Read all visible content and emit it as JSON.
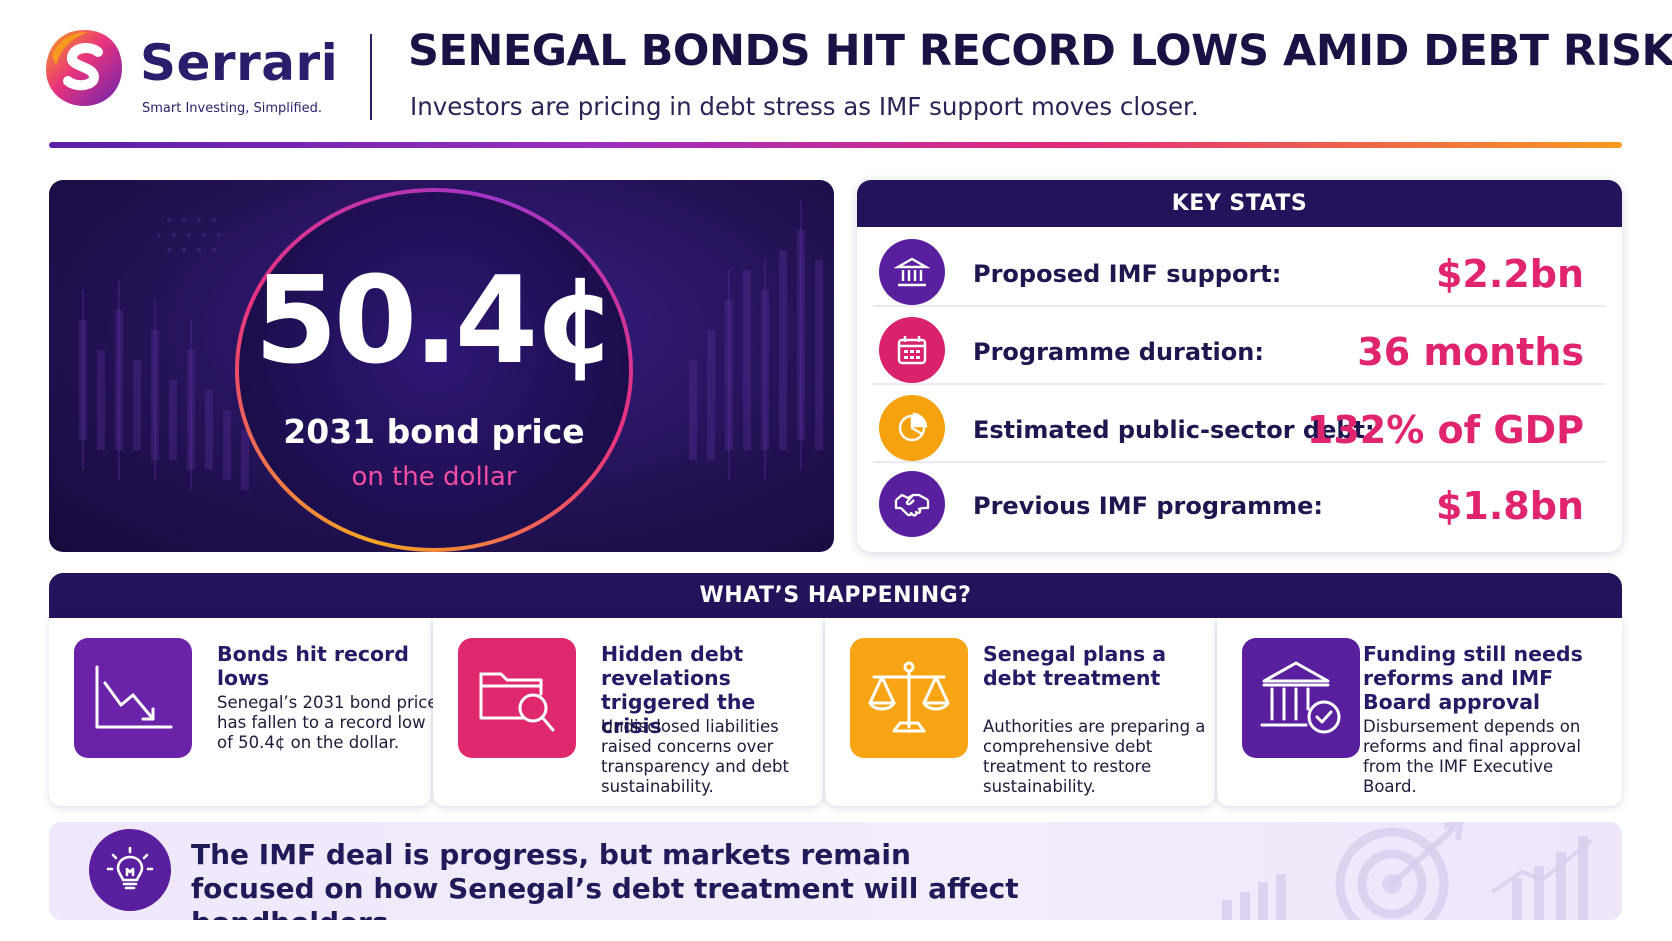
{
  "brand": {
    "name": "Serrari",
    "tagline": "Smart Investing, Simplified.",
    "logo_icon": "serrari-s-logo-icon"
  },
  "header": {
    "title": "SENEGAL BONDS HIT RECORD LOWS AMID DEBT RISKS",
    "subtitle": "Investors are pricing in debt stress as IMF support moves closer."
  },
  "hero": {
    "value": "50.4¢",
    "label": "2031 bond price",
    "sublabel": "on the dollar"
  },
  "key_stats": {
    "heading": "KEY STATS",
    "items": [
      {
        "icon": "bank-icon",
        "icon_color": "#5a1f9f",
        "label": "Proposed IMF support:",
        "value": "$2.2bn"
      },
      {
        "icon": "calendar-icon",
        "icon_color": "#d9226b",
        "label": "Programme duration:",
        "value": "36 months"
      },
      {
        "icon": "pie-chart-icon",
        "icon_color": "#f5a20e",
        "label": "Estimated public-sector debt:",
        "value": "132% of GDP"
      },
      {
        "icon": "handshake-icon",
        "icon_color": "#5a1f9f",
        "label": "Previous IMF programme:",
        "value": "$1.8bn"
      }
    ]
  },
  "happening": {
    "heading": "WHAT’S HAPPENING?",
    "cards": [
      {
        "icon": "chart-down-icon",
        "icon_bg": "#6a22a8",
        "title": "Bonds hit record lows",
        "body": "Senegal’s 2031 bond price has fallen to a record low of 50.4¢ on the dollar."
      },
      {
        "icon": "folder-search-icon",
        "icon_bg": "#e0286f",
        "title": "Hidden debt revelations triggered the crisis",
        "body": "Undisclosed liabilities raised concerns over transparency and debt sustainability."
      },
      {
        "icon": "scales-icon",
        "icon_bg": "#f8a414",
        "title": "Senegal plans a debt treatment",
        "body": "Authorities are preparing a comprehensive debt treatment to restore sustainability."
      },
      {
        "icon": "bank-check-icon",
        "icon_bg": "#5a1f9f",
        "title": "Funding still needs reforms and IMF Board approval",
        "body": "Disbursement depends on reforms and final approval from the IMF Executive Board."
      }
    ]
  },
  "footer": {
    "icon": "lightbulb-icon",
    "text": "The IMF deal is progress, but markets remain focused on how Senegal’s debt treatment will affect bondholders."
  },
  "colors": {
    "navy": "#24125a",
    "accent_pink": "#e0256e",
    "accent_orange": "#f5a20e",
    "accent_purple": "#5a1f9f"
  }
}
